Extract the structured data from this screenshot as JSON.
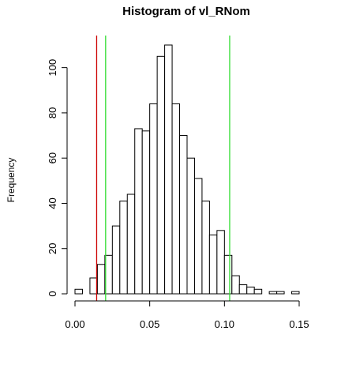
{
  "chart_data": {
    "type": "bar",
    "title": "Histogram of vl_RNom",
    "xlabel": "",
    "ylabel": "Frequency",
    "bin_width": 0.005,
    "bin_starts": [
      0.0,
      0.005,
      0.01,
      0.015,
      0.02,
      0.025,
      0.03,
      0.035,
      0.04,
      0.045,
      0.05,
      0.055,
      0.06,
      0.065,
      0.07,
      0.075,
      0.08,
      0.085,
      0.09,
      0.095,
      0.1,
      0.105,
      0.11,
      0.115,
      0.12,
      0.125,
      0.13,
      0.135,
      0.14,
      0.145
    ],
    "values": [
      2,
      0,
      7,
      13,
      17,
      30,
      41,
      44,
      73,
      72,
      84,
      105,
      110,
      84,
      70,
      60,
      51,
      41,
      26,
      28,
      17,
      8,
      4,
      3,
      2,
      0,
      1,
      1,
      0,
      1
    ],
    "xlim": [
      0.0,
      0.15
    ],
    "ylim": [
      0,
      110
    ],
    "x_ticks": [
      0.0,
      0.05,
      0.1,
      0.15
    ],
    "x_tick_labels": [
      "0.00",
      "0.05",
      "0.10",
      "0.15"
    ],
    "y_ticks": [
      0,
      20,
      40,
      60,
      80,
      100
    ],
    "y_tick_labels": [
      "0",
      "20",
      "40",
      "60",
      "80",
      "100"
    ],
    "grid": false,
    "vertical_lines": [
      {
        "x": 0.0145,
        "color": "#cc0000"
      },
      {
        "x": 0.0205,
        "color": "#33dd33"
      },
      {
        "x": 0.1035,
        "color": "#33dd33"
      }
    ]
  }
}
